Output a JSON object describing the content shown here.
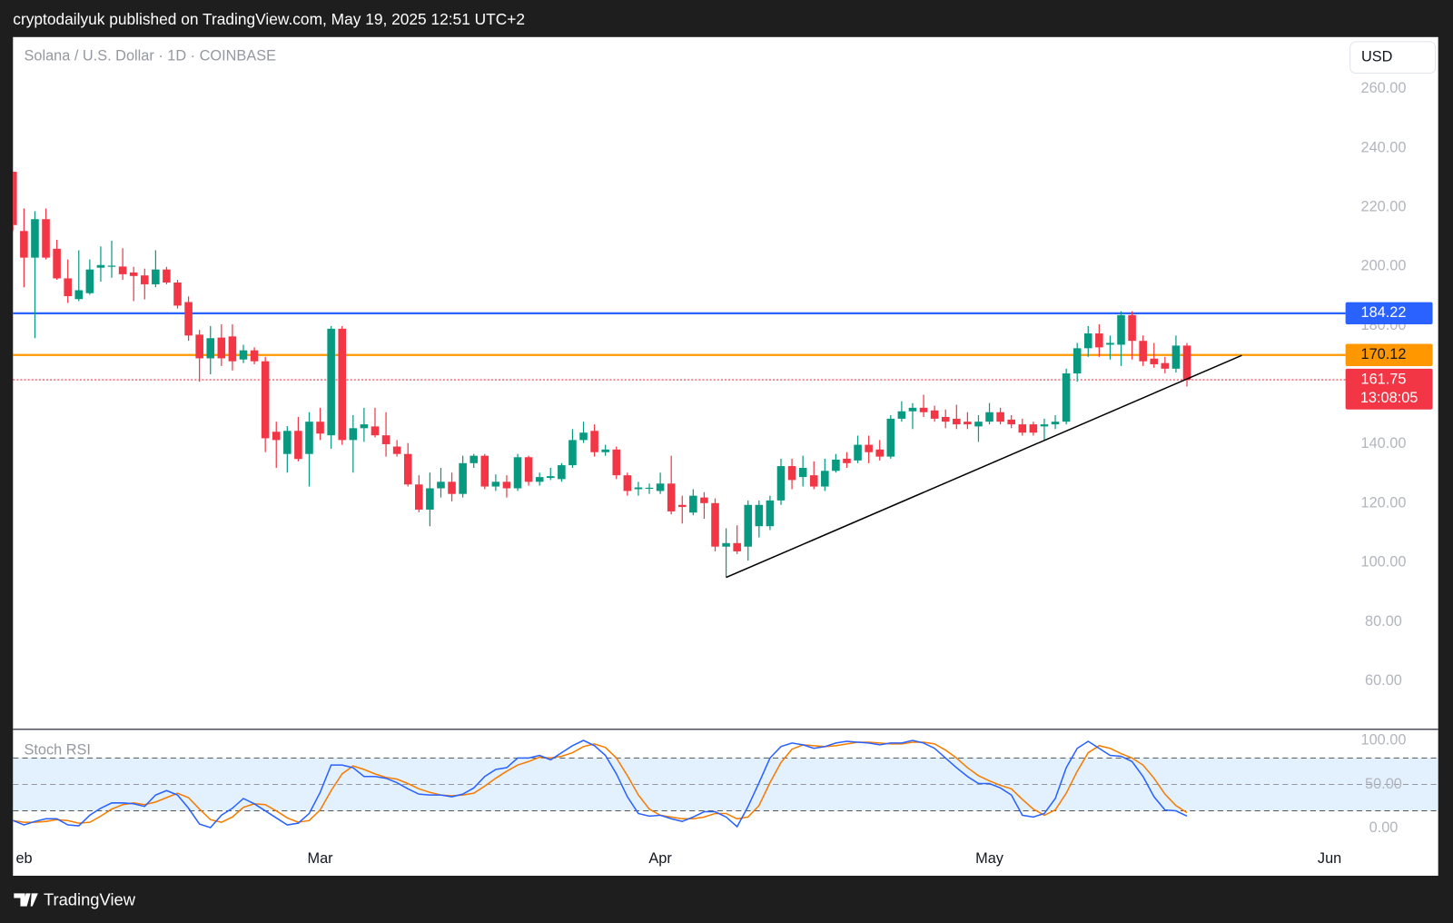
{
  "header": {
    "byline": "cryptodailyuk published on TradingView.com, May 19, 2025 12:51 UTC+2"
  },
  "footer": {
    "brand": "TradingView"
  },
  "chart_data": [
    {
      "type": "candlestick",
      "title": "Solana / U.S. Dollar · 1D · COINBASE",
      "currency": "USD",
      "up_color": "#089981",
      "down_color": "#f23645",
      "open": [
        232,
        212,
        203,
        216,
        206,
        196,
        189,
        191,
        199.6,
        200,
        200,
        198,
        197,
        194,
        199,
        194.6,
        188,
        177,
        169,
        176,
        176.4,
        168.6,
        171.7,
        168,
        144.2,
        136.7,
        144.5,
        136.7,
        147.6,
        143,
        179,
        141.4,
        145.4,
        146,
        143,
        139.2,
        136.7,
        126.4,
        117.9,
        125.1,
        127.3,
        123.2,
        133.6,
        136.1,
        125.7,
        127.3,
        125.1,
        135.6,
        127.3,
        128.6,
        128.2,
        132.9,
        141.4,
        144.5,
        137.3,
        138.2,
        129.5,
        124.8,
        125,
        124.2,
        126.7,
        119.5,
        116.9,
        122,
        120.1,
        105.4,
        106.6,
        105.4,
        112.3,
        112.3,
        121,
        132.6,
        128.9,
        129.5,
        125.7,
        131,
        135.1,
        134.5,
        139.8,
        138.2,
        135.8,
        148.6,
        151.1,
        152.3,
        151.4,
        149.2,
        148.6,
        147.6,
        146,
        147.6,
        150.8,
        148.3,
        146.7,
        146.7,
        146,
        146.7,
        147.6,
        163.9,
        172.4,
        177.4,
        173.6,
        173.6,
        183.6,
        174.9,
        168.9,
        167.4,
        165.5,
        173.3
      ],
      "high": [
        232,
        219.6,
        218.7,
        219.6,
        209,
        202.4,
        205.5,
        202.4,
        206.8,
        208.7,
        206.2,
        199.9,
        199.3,
        205.5,
        199.9,
        195.5,
        189.9,
        178.6,
        179.9,
        180.5,
        180.5,
        173.6,
        172.7,
        169.5,
        147.6,
        146.1,
        149.2,
        150.8,
        152.3,
        179.9,
        179.9,
        149.8,
        152.3,
        152.3,
        150.8,
        141.4,
        140.4,
        129.5,
        130.4,
        132,
        130.4,
        136.1,
        136.7,
        136.7,
        129.8,
        129.5,
        136.7,
        136.1,
        130.4,
        132,
        133.6,
        145.1,
        147.6,
        146.7,
        139.8,
        139.2,
        130.4,
        127.3,
        126.7,
        130.4,
        136.1,
        122.6,
        124.8,
        123.8,
        121.7,
        111.6,
        112.6,
        121,
        121,
        122.6,
        135.1,
        135.1,
        136.1,
        134.2,
        135.1,
        136.7,
        137.3,
        142.9,
        142.9,
        141.4,
        149.8,
        154.5,
        153.9,
        156.7,
        153,
        151.7,
        153.3,
        150.8,
        149.8,
        153.9,
        152.3,
        149.8,
        148.6,
        147.6,
        148.6,
        149.8,
        165.5,
        174.2,
        179.9,
        180.5,
        176.7,
        184.9,
        184.9,
        176.7,
        174.2,
        169.5,
        176.7,
        174.2
      ],
      "low": [
        212,
        193,
        175.8,
        202.4,
        195.5,
        187.7,
        188.3,
        190.5,
        194.9,
        196.2,
        195.5,
        188.3,
        188.9,
        193,
        194,
        185.8,
        174.9,
        161.1,
        163.6,
        166.4,
        164.9,
        167.4,
        167,
        137.3,
        132,
        130.4,
        134.2,
        125.7,
        141.4,
        138.5,
        139.8,
        130.4,
        140.8,
        142.3,
        135.8,
        135.8,
        125.7,
        117,
        112.3,
        122,
        120.7,
        122,
        132,
        124.8,
        124.2,
        122,
        124.2,
        126,
        126,
        127.9,
        127.3,
        132,
        140.4,
        135.8,
        136.1,
        128.2,
        122.6,
        122.6,
        123.2,
        123.2,
        116.3,
        113.2,
        116,
        114.8,
        103.8,
        95,
        102.9,
        100.7,
        108.5,
        111,
        119.5,
        124.8,
        125.7,
        124.8,
        124.2,
        130.4,
        132,
        133.6,
        133.6,
        134.5,
        135.1,
        147.6,
        145.1,
        149.2,
        147.6,
        145.4,
        145.1,
        145.1,
        140.8,
        146.7,
        146.7,
        145.4,
        142.9,
        142.9,
        141.4,
        145.1,
        146.7,
        161.1,
        169.5,
        169.5,
        168.6,
        166.4,
        168.6,
        166.4,
        165.8,
        163.9,
        164.2,
        159.5
      ],
      "close": [
        214,
        203,
        216,
        203,
        196,
        190,
        192,
        199,
        200.5,
        200.3,
        197.4,
        196.8,
        194,
        199,
        194.6,
        186.8,
        176.7,
        169,
        175.8,
        169,
        168,
        171.7,
        168,
        142,
        141.4,
        144.5,
        135,
        147.6,
        143.6,
        179,
        141.4,
        145.4,
        146.7,
        143,
        140,
        136.7,
        126.4,
        117.9,
        125.1,
        127.3,
        123.2,
        133.6,
        136.1,
        125.7,
        127.3,
        125.1,
        135.6,
        127.3,
        128.9,
        129.2,
        132.9,
        141.4,
        143.9,
        137.3,
        138.2,
        129.5,
        124.2,
        125.4,
        125.3,
        126.7,
        117.3,
        118.8,
        122.6,
        120.1,
        105.4,
        106.6,
        103.8,
        119.5,
        119.5,
        121,
        132.6,
        127.9,
        132,
        125.7,
        131,
        134.8,
        133.6,
        139.8,
        137.3,
        135.8,
        148.6,
        151.1,
        152.3,
        150.8,
        148.6,
        147.6,
        146.7,
        146.7,
        147.6,
        150.8,
        147.6,
        146.7,
        143.9,
        143.9,
        146.7,
        147.6,
        163.9,
        172.4,
        177.4,
        172.7,
        174.2,
        183.6,
        174.9,
        168,
        167,
        165.5,
        173.3,
        161.75
      ],
      "levels": [
        {
          "value": 184.22,
          "color": "#2962ff"
        },
        {
          "value": 170.12,
          "color": "#ff9800"
        },
        {
          "value": 161.75,
          "color": "#f23645",
          "style": "dotted",
          "countdown": "13:08:05"
        }
      ],
      "trendline": {
        "x": [
          65,
          112
        ],
        "values": [
          95,
          170
        ],
        "color": "#000000"
      },
      "xlim": [
        0,
        129.9
      ],
      "ylim": [
        43.7,
        277.5
      ],
      "xticks": [
        {
          "value": 0,
          "label": "eb"
        },
        {
          "value": 28,
          "label": "Mar"
        },
        {
          "value": 59,
          "label": "Apr"
        },
        {
          "value": 89,
          "label": "May"
        },
        {
          "value": 120,
          "label": "Jun"
        }
      ],
      "yticks": [
        {
          "value": 60,
          "label": "60.00"
        },
        {
          "value": 80,
          "label": "80.00"
        },
        {
          "value": 100,
          "label": "100.00"
        },
        {
          "value": 120,
          "label": "120.00"
        },
        {
          "value": 140,
          "label": "140.00"
        },
        {
          "value": 160,
          "label": "160.00"
        },
        {
          "value": 180,
          "label": "180.00"
        },
        {
          "value": 200,
          "label": "200.00"
        },
        {
          "value": 220,
          "label": "220.00"
        },
        {
          "value": 240,
          "label": "240.00"
        },
        {
          "value": 260,
          "label": "260.00"
        }
      ],
      "grid": false
    },
    {
      "type": "line",
      "title": "Stoch RSI",
      "series": [
        {
          "color": "#2962ff",
          "values": [
            9,
            4,
            8,
            11,
            11,
            4,
            3,
            15,
            23,
            29,
            29,
            28,
            25,
            38,
            43,
            38,
            23,
            5,
            1,
            15,
            23,
            34,
            28,
            20,
            12,
            4,
            6,
            17,
            41,
            72,
            72,
            69,
            59,
            59,
            57,
            52,
            45,
            39,
            38,
            38,
            36,
            39,
            46,
            59,
            67,
            69,
            80,
            80,
            83,
            78,
            86,
            94,
            100,
            94,
            83,
            62,
            36,
            17,
            14,
            15,
            11,
            8,
            13,
            19,
            19,
            13,
            2,
            25,
            52,
            80,
            93,
            97,
            95,
            91,
            93,
            97,
            99,
            98,
            97,
            95,
            97,
            97,
            100,
            97,
            91,
            80,
            69,
            59,
            51,
            51,
            46,
            38,
            15,
            13,
            17,
            34,
            69,
            91,
            99,
            91,
            83,
            82,
            76,
            59,
            36,
            21,
            20,
            14
          ]
        },
        {
          "color": "#f57c00",
          "values": [
            9,
            7,
            7,
            8,
            10,
            9,
            6,
            7,
            14,
            22,
            27,
            29,
            27,
            30,
            35,
            40,
            35,
            22,
            10,
            7,
            13,
            24,
            28,
            27,
            20,
            12,
            7,
            9,
            21,
            43,
            62,
            71,
            67,
            62,
            58,
            56,
            51,
            45,
            41,
            38,
            37,
            38,
            40,
            48,
            57,
            65,
            72,
            76,
            81,
            80,
            82,
            86,
            93,
            96,
            92,
            80,
            60,
            38,
            22,
            15,
            13,
            11,
            11,
            13,
            17,
            17,
            11,
            13,
            26,
            52,
            75,
            90,
            95,
            94,
            93,
            94,
            96,
            98,
            98,
            97,
            96,
            96,
            98,
            98,
            96,
            89,
            80,
            69,
            60,
            54,
            49,
            45,
            33,
            22,
            15,
            21,
            40,
            65,
            86,
            94,
            91,
            85,
            80,
            72,
            57,
            39,
            26,
            18
          ]
        }
      ],
      "band": [
        20,
        80
      ],
      "band_color": "#e3f0fd",
      "levels": [
        20,
        50,
        80
      ],
      "xlim": [
        0,
        129.9
      ],
      "ylim": [
        -53.7,
        112.6
      ],
      "yticks": [
        {
          "value": 0,
          "label": "0.00"
        },
        {
          "value": 50,
          "label": "50.00"
        },
        {
          "value": 100,
          "label": "100.00"
        }
      ]
    }
  ]
}
